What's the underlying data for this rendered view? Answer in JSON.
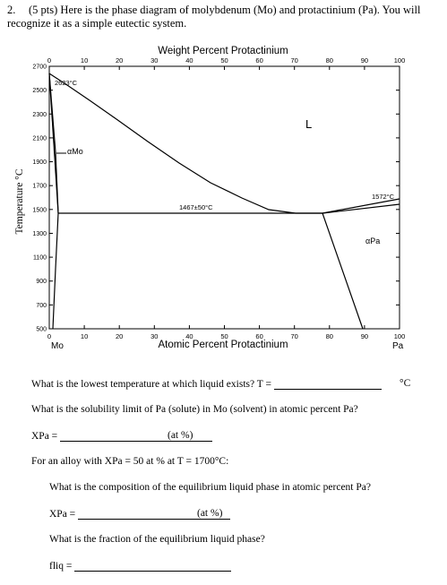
{
  "problem": {
    "number": "2.",
    "points": "(5 pts)",
    "text": "Here is the phase diagram of molybdenum (Mo) and protactinium (Pa). You will recognize it as a simple eutectic system."
  },
  "diagram": {
    "top_axis_title": "Weight Percent Protactinium",
    "bottom_axis_title": "Atomic Percent Protactinium",
    "y_axis_title": "Temperature °C",
    "top_ticks": [
      "0",
      "10",
      "20",
      "30",
      "40",
      "50",
      "60",
      "70",
      "80",
      "90",
      "100"
    ],
    "bottom_ticks": [
      "0",
      "10",
      "20",
      "30",
      "40",
      "50",
      "60",
      "70",
      "80",
      "90",
      "100"
    ],
    "y_ticks": [
      "2700",
      "2500",
      "2300",
      "2100",
      "1900",
      "1700",
      "1500",
      "1300",
      "1100",
      "900",
      "700",
      "500"
    ],
    "left_element": "Mo",
    "right_element": "Pa",
    "labels": {
      "mo_melting": "2623°C",
      "eutectic": "1467±50°C",
      "pa_melting": "1572°C",
      "liquid": "L",
      "alpha_mo": "αMo",
      "alpha_pa": "αPa"
    }
  },
  "questions": {
    "q1": "What is the lowest temperature at which liquid exists? T =",
    "q1_unit": "°C",
    "q2": "What is the solubility limit of Pa (solute) in Mo (solvent) in atomic percent Pa?",
    "q2_var": "XPa =",
    "q2_unit": "(at %)",
    "q3": "For an alloy with XPa = 50 at % at T = 1700°C:",
    "q3a": "What is the composition of the equilibrium liquid phase in atomic percent Pa?",
    "q3a_var": "XPa =",
    "q3a_unit": "(at %)",
    "q3b": "What is the fraction of the equilibrium liquid phase?",
    "q3b_var": "fliq ="
  }
}
